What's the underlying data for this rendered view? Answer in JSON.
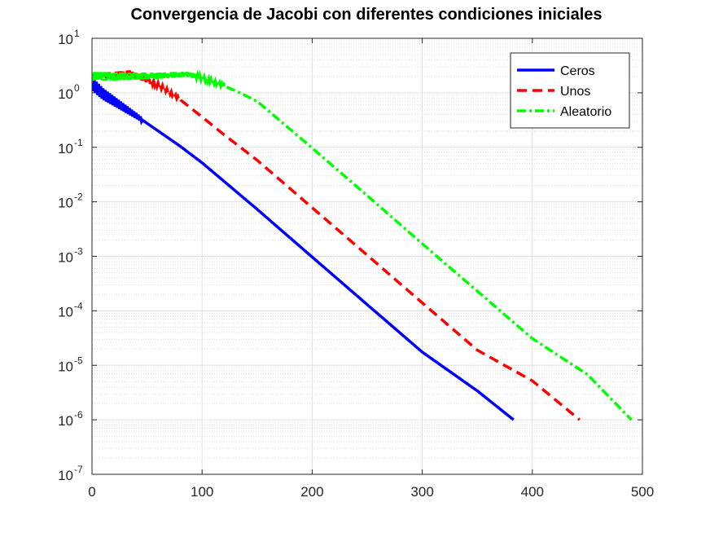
{
  "chart_data": {
    "type": "line",
    "title": "Convergencia de Jacobi con diferentes condiciones iniciales",
    "xlabel": "",
    "ylabel": "",
    "xlim": [
      0,
      500
    ],
    "ylim": [
      1e-07,
      10
    ],
    "yscale": "log",
    "grid": true,
    "legend_position": "top-right",
    "x_ticks": [
      0,
      100,
      200,
      300,
      400,
      500
    ],
    "y_ticks": [
      {
        "value": 10,
        "base": "10",
        "exp": "1"
      },
      {
        "value": 1,
        "base": "10",
        "exp": "0"
      },
      {
        "value": 0.1,
        "base": "10",
        "exp": "-1"
      },
      {
        "value": 0.01,
        "base": "10",
        "exp": "-2"
      },
      {
        "value": 0.001,
        "base": "10",
        "exp": "-3"
      },
      {
        "value": 0.0001,
        "base": "10",
        "exp": "-4"
      },
      {
        "value": 1e-05,
        "base": "10",
        "exp": "-5"
      },
      {
        "value": 1e-06,
        "base": "10",
        "exp": "-6"
      },
      {
        "value": 1e-07,
        "base": "10",
        "exp": "-7"
      }
    ],
    "series": [
      {
        "name": "Ceros",
        "color": "#0000ff",
        "dash": "solid",
        "oscillation": {
          "x_end": 45,
          "amplitude_decades": 0.12
        },
        "points": [
          [
            1,
            1.4
          ],
          [
            10,
            0.95
          ],
          [
            20,
            0.7
          ],
          [
            40,
            0.38
          ],
          [
            60,
            0.2
          ],
          [
            80,
            0.105
          ],
          [
            100,
            0.052
          ],
          [
            150,
            0.0073
          ],
          [
            200,
            0.00097
          ],
          [
            250,
            0.00013
          ],
          [
            300,
            1.75e-05
          ],
          [
            350,
            3.4e-06
          ],
          [
            383,
            1e-06
          ]
        ]
      },
      {
        "name": "Unos",
        "color": "#ff0000",
        "dash": "dashed",
        "oscillation": {
          "x_end": 80,
          "amplitude_decades": 0.07
        },
        "points": [
          [
            1,
            2.0
          ],
          [
            20,
            2.1
          ],
          [
            35,
            2.3
          ],
          [
            50,
            1.7
          ],
          [
            60,
            1.4
          ],
          [
            70,
            1.05
          ],
          [
            80,
            0.75
          ],
          [
            90,
            0.52
          ],
          [
            100,
            0.36
          ],
          [
            120,
            0.17
          ],
          [
            150,
            0.058
          ],
          [
            200,
            0.0078
          ],
          [
            250,
            0.00105
          ],
          [
            300,
            0.00014
          ],
          [
            350,
            1.9e-05
          ],
          [
            400,
            5.2e-06
          ],
          [
            443,
            1e-06
          ]
        ]
      },
      {
        "name": "Aleatorio",
        "color": "#00ff00",
        "dash": "dashdot",
        "oscillation": {
          "x_end": 120,
          "amplitude_decades": 0.08
        },
        "points": [
          [
            1,
            2.0
          ],
          [
            30,
            2.0
          ],
          [
            60,
            2.05
          ],
          [
            85,
            2.2
          ],
          [
            95,
            2.0
          ],
          [
            110,
            1.6
          ],
          [
            130,
            1.1
          ],
          [
            150,
            0.7
          ],
          [
            200,
            0.097
          ],
          [
            250,
            0.013
          ],
          [
            300,
            0.0017
          ],
          [
            350,
            0.00023
          ],
          [
            400,
            3.1e-05
          ],
          [
            450,
            6.8e-06
          ],
          [
            490,
            1e-06
          ]
        ]
      }
    ]
  }
}
